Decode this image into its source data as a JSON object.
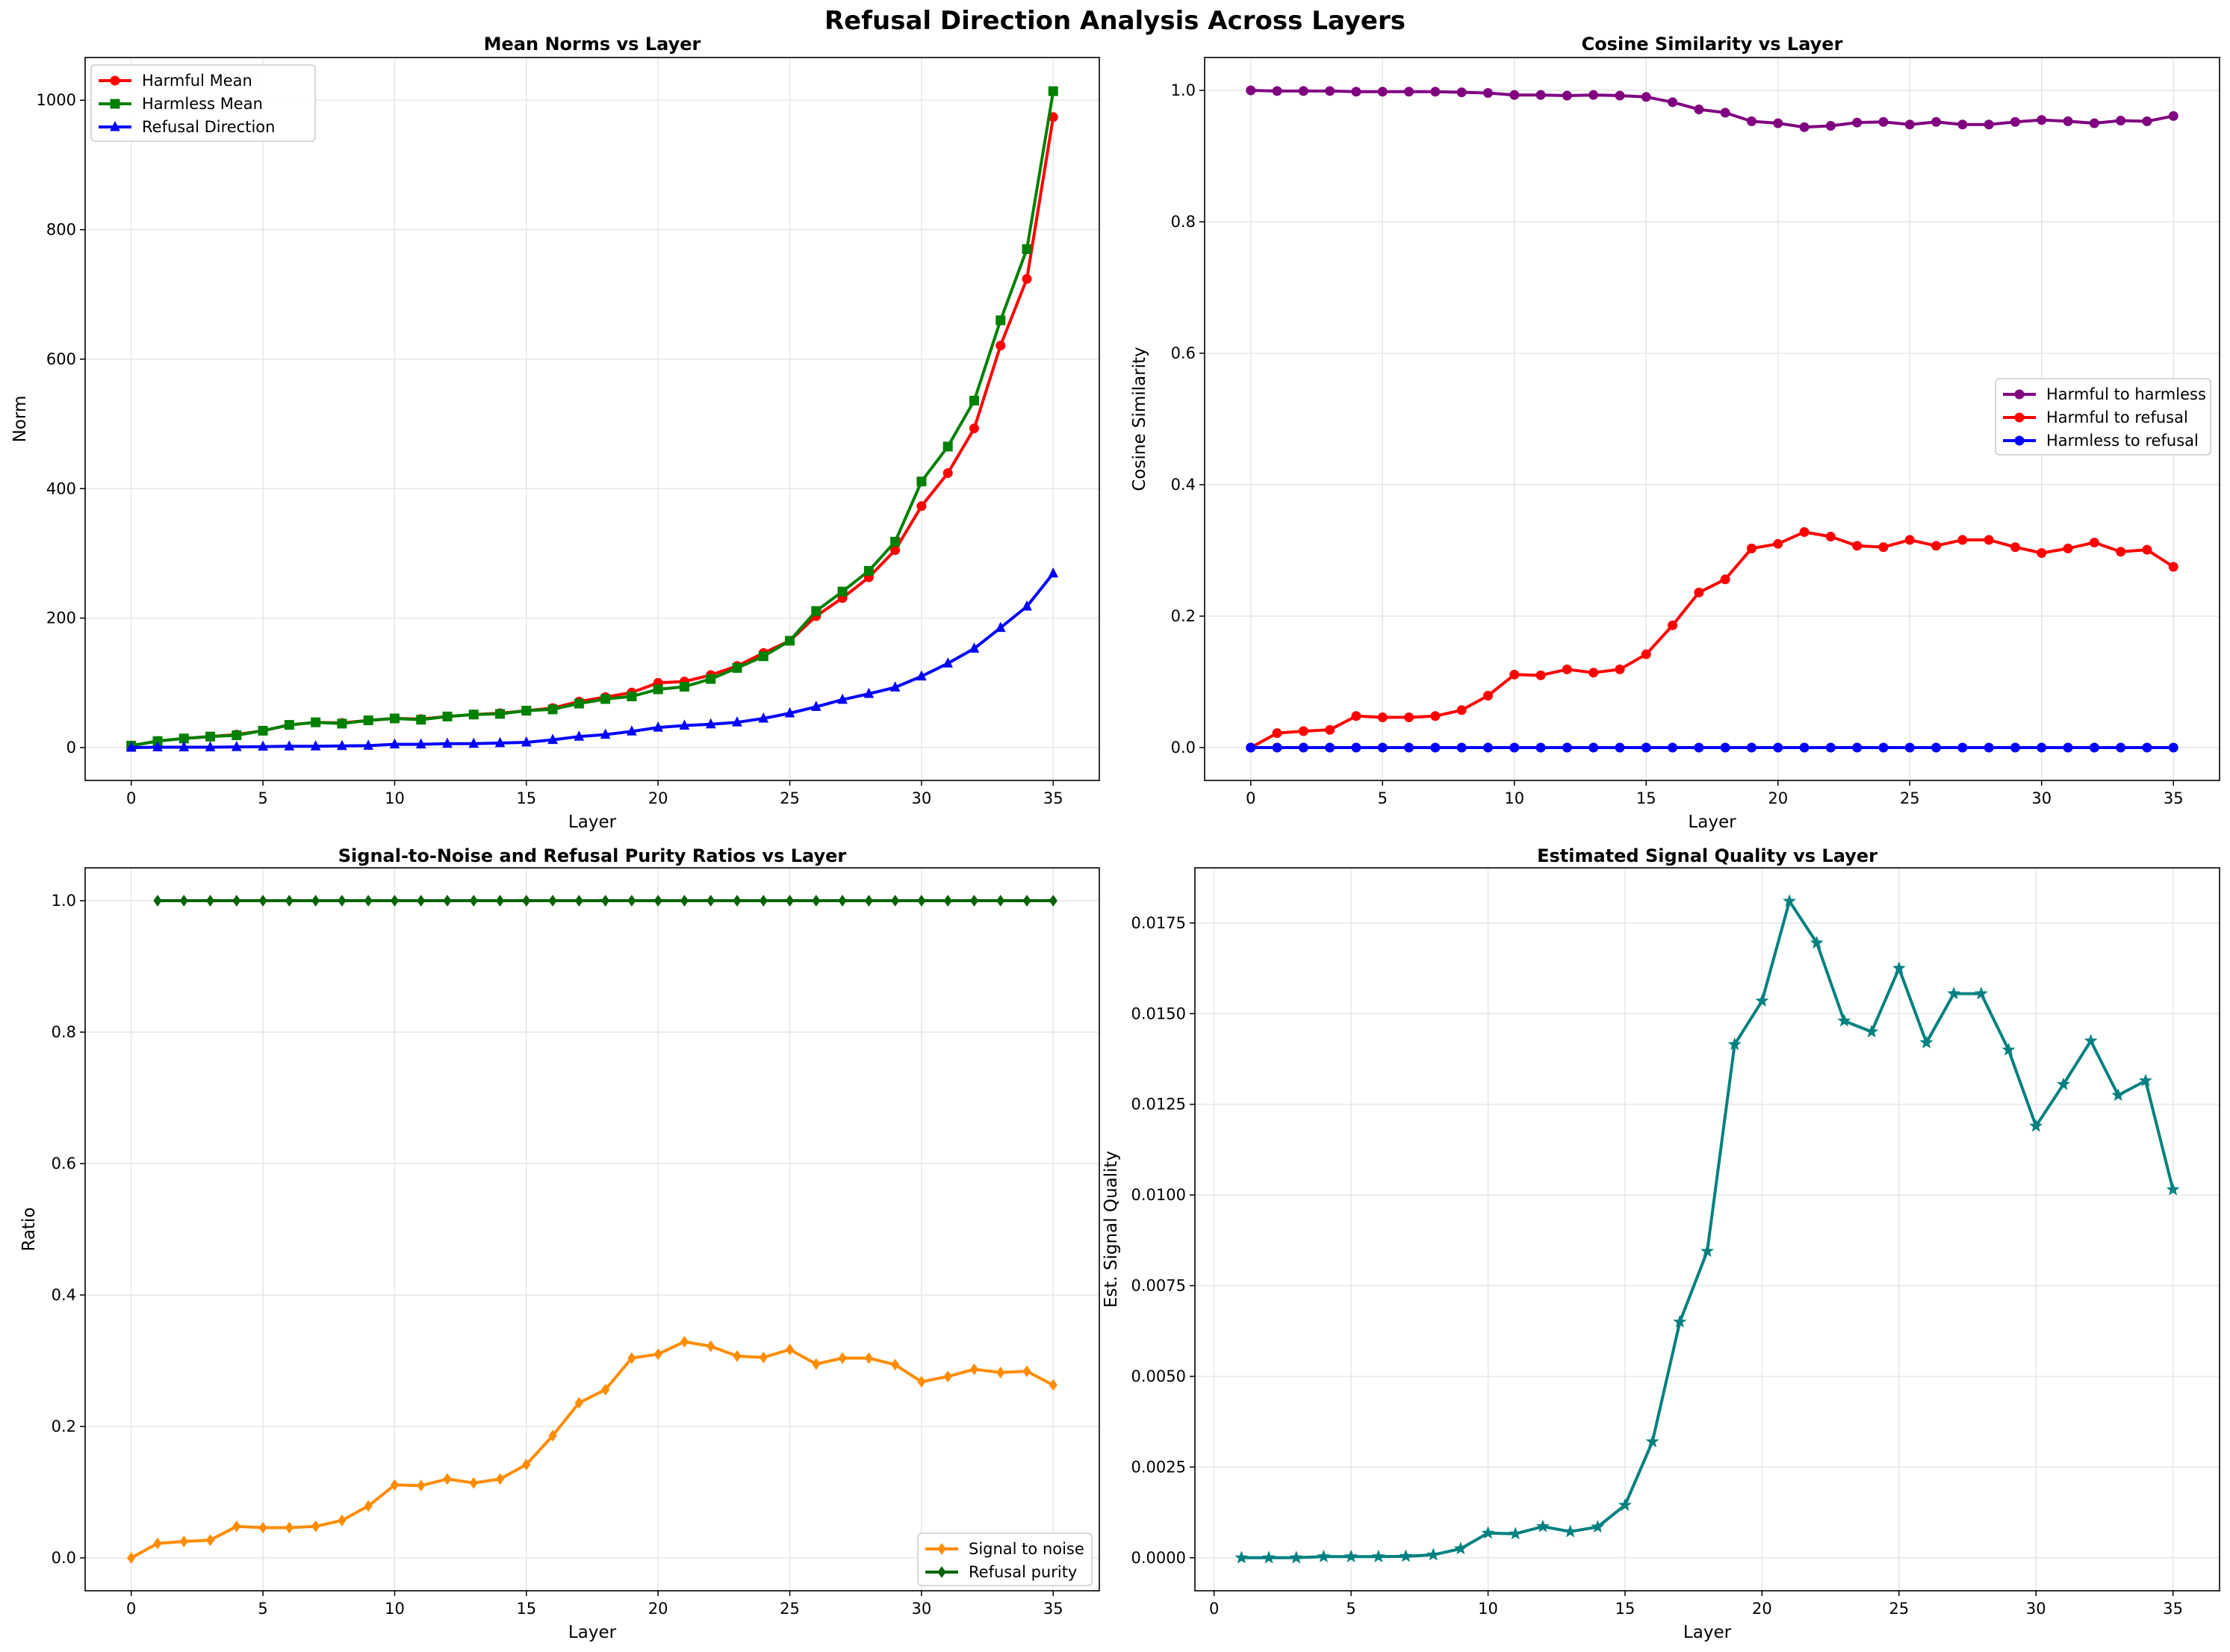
{
  "figure": {
    "title": "Refusal Direction Analysis Across Layers"
  },
  "colors": {
    "red": "#ff0000",
    "green": "#008000",
    "blue": "#0000ff",
    "purple": "#800080",
    "orange": "#ff8c00",
    "darkgreen": "#006400",
    "teal": "#008080",
    "grid": "#e6e6e6"
  },
  "chart_data": [
    {
      "id": "norms",
      "type": "line",
      "title": "Mean Norms vs Layer",
      "xlabel": "Layer",
      "ylabel": "Norm",
      "xlim": [
        -1.75,
        36.75
      ],
      "ylim": [
        -50.8,
        1066
      ],
      "xticks": [
        0,
        5,
        10,
        15,
        20,
        25,
        30,
        35
      ],
      "yticks": [
        0,
        200,
        400,
        600,
        800,
        1000
      ],
      "ytick_labels": [
        "0",
        "200",
        "400",
        "600",
        "800",
        "1000"
      ],
      "legend_position": "top-left",
      "series": [
        {
          "name": "Harmful Mean",
          "color": "#ff0000",
          "marker": "circle",
          "x": [
            0,
            1,
            2,
            3,
            4,
            5,
            6,
            7,
            8,
            9,
            10,
            11,
            12,
            13,
            14,
            15,
            16,
            17,
            18,
            19,
            20,
            21,
            22,
            23,
            24,
            25,
            26,
            27,
            28,
            29,
            30,
            31,
            32,
            33,
            34,
            35
          ],
          "y": [
            3,
            10,
            14,
            17,
            20,
            26,
            35,
            39,
            38,
            42,
            45,
            44,
            48,
            51,
            53,
            57,
            61,
            71,
            78,
            85,
            100,
            102,
            112,
            126,
            146,
            165,
            203,
            231,
            263,
            305,
            373,
            424,
            493,
            621,
            724,
            974
          ]
        },
        {
          "name": "Harmless Mean",
          "color": "#008000",
          "marker": "square",
          "x": [
            0,
            1,
            2,
            3,
            4,
            5,
            6,
            7,
            8,
            9,
            10,
            11,
            12,
            13,
            14,
            15,
            16,
            17,
            18,
            19,
            20,
            21,
            22,
            23,
            24,
            25,
            26,
            27,
            28,
            29,
            30,
            31,
            32,
            33,
            34,
            35
          ],
          "y": [
            3,
            10,
            14,
            17,
            19,
            26,
            35,
            39,
            37,
            42,
            45,
            43,
            48,
            51,
            52,
            57,
            59,
            68,
            75,
            79,
            90,
            94,
            106,
            123,
            141,
            165,
            211,
            241,
            273,
            318,
            411,
            465,
            536,
            660,
            770,
            1014
          ]
        },
        {
          "name": "Refusal Direction",
          "color": "#0000ff",
          "marker": "triangle",
          "x": [
            0,
            1,
            2,
            3,
            4,
            5,
            6,
            7,
            8,
            9,
            10,
            11,
            12,
            13,
            14,
            15,
            16,
            17,
            18,
            19,
            20,
            21,
            22,
            23,
            24,
            25,
            26,
            27,
            28,
            29,
            30,
            31,
            32,
            33,
            34,
            35
          ],
          "y": [
            0,
            0.5,
            0.5,
            0.5,
            1,
            1.5,
            2,
            2,
            2.5,
            3,
            5,
            5,
            6,
            6,
            7,
            8,
            12,
            17,
            20,
            25,
            31,
            34,
            36,
            39,
            45,
            53,
            63,
            74,
            83,
            93,
            110,
            130,
            153,
            185,
            218,
            269
          ]
        }
      ]
    },
    {
      "id": "cosine",
      "type": "line",
      "title": "Cosine Similarity vs Layer",
      "xlabel": "Layer",
      "ylabel": "Cosine Similarity",
      "xlim": [
        -1.75,
        36.75
      ],
      "ylim": [
        -0.05,
        1.05
      ],
      "xticks": [
        0,
        5,
        10,
        15,
        20,
        25,
        30,
        35
      ],
      "yticks": [
        0,
        0.2,
        0.4,
        0.6,
        0.8,
        1.0
      ],
      "ytick_labels": [
        "0.0",
        "0.2",
        "0.4",
        "0.6",
        "0.8",
        "1.0"
      ],
      "legend_position": "center-right",
      "series": [
        {
          "name": "Harmful to harmless",
          "color": "#800080",
          "marker": "circle",
          "x": [
            0,
            1,
            2,
            3,
            4,
            5,
            6,
            7,
            8,
            9,
            10,
            11,
            12,
            13,
            14,
            15,
            16,
            17,
            18,
            19,
            20,
            21,
            22,
            23,
            24,
            25,
            26,
            27,
            28,
            29,
            30,
            31,
            32,
            33,
            34,
            35
          ],
          "y": [
            1.0,
            0.999,
            0.999,
            0.999,
            0.998,
            0.998,
            0.998,
            0.998,
            0.997,
            0.996,
            0.993,
            0.993,
            0.992,
            0.993,
            0.992,
            0.99,
            0.982,
            0.971,
            0.966,
            0.953,
            0.95,
            0.944,
            0.946,
            0.951,
            0.952,
            0.948,
            0.952,
            0.948,
            0.948,
            0.952,
            0.955,
            0.953,
            0.95,
            0.954,
            0.953,
            0.961
          ]
        },
        {
          "name": "Harmful to refusal",
          "color": "#ff0000",
          "marker": "circle",
          "x": [
            0,
            1,
            2,
            3,
            4,
            5,
            6,
            7,
            8,
            9,
            10,
            11,
            12,
            13,
            14,
            15,
            16,
            17,
            18,
            19,
            20,
            21,
            22,
            23,
            24,
            25,
            26,
            27,
            28,
            29,
            30,
            31,
            32,
            33,
            34,
            35
          ],
          "y": [
            0,
            0.022,
            0.025,
            0.027,
            0.048,
            0.046,
            0.046,
            0.048,
            0.057,
            0.079,
            0.111,
            0.11,
            0.119,
            0.114,
            0.119,
            0.142,
            0.186,
            0.236,
            0.256,
            0.303,
            0.31,
            0.328,
            0.321,
            0.307,
            0.305,
            0.316,
            0.307,
            0.316,
            0.316,
            0.305,
            0.296,
            0.303,
            0.312,
            0.298,
            0.301,
            0.275
          ]
        },
        {
          "name": "Harmless to refusal",
          "color": "#0000ff",
          "marker": "circle",
          "x": [
            0,
            1,
            2,
            3,
            4,
            5,
            6,
            7,
            8,
            9,
            10,
            11,
            12,
            13,
            14,
            15,
            16,
            17,
            18,
            19,
            20,
            21,
            22,
            23,
            24,
            25,
            26,
            27,
            28,
            29,
            30,
            31,
            32,
            33,
            34,
            35
          ],
          "y": [
            0,
            0,
            0,
            0,
            0,
            0,
            0,
            0,
            0,
            0,
            0,
            0,
            0,
            0,
            0,
            0,
            0,
            0,
            0,
            0,
            0,
            0,
            0,
            0,
            0,
            0,
            0,
            0,
            0,
            0,
            0,
            0,
            0,
            0,
            0,
            0
          ]
        }
      ]
    },
    {
      "id": "ratios",
      "type": "line",
      "title": "Signal-to-Noise and Refusal Purity Ratios vs Layer",
      "xlabel": "Layer",
      "ylabel": "Ratio",
      "xlim": [
        -1.75,
        36.75
      ],
      "ylim": [
        -0.05,
        1.05
      ],
      "xticks": [
        0,
        5,
        10,
        15,
        20,
        25,
        30,
        35
      ],
      "yticks": [
        0,
        0.2,
        0.4,
        0.6,
        0.8,
        1.0
      ],
      "ytick_labels": [
        "0.0",
        "0.2",
        "0.4",
        "0.6",
        "0.8",
        "1.0"
      ],
      "legend_position": "bottom-right",
      "series": [
        {
          "name": "Signal to noise",
          "color": "#ff8c00",
          "marker": "diamond",
          "x": [
            0,
            1,
            2,
            3,
            4,
            5,
            6,
            7,
            8,
            9,
            10,
            11,
            12,
            13,
            14,
            15,
            16,
            17,
            18,
            19,
            20,
            21,
            22,
            23,
            24,
            25,
            26,
            27,
            28,
            29,
            30,
            31,
            32,
            33,
            34,
            35
          ],
          "y": [
            0,
            0.022,
            0.025,
            0.027,
            0.048,
            0.046,
            0.046,
            0.048,
            0.057,
            0.079,
            0.111,
            0.11,
            0.12,
            0.114,
            0.12,
            0.142,
            0.186,
            0.236,
            0.256,
            0.304,
            0.31,
            0.329,
            0.322,
            0.307,
            0.305,
            0.317,
            0.295,
            0.304,
            0.304,
            0.294,
            0.268,
            0.276,
            0.287,
            0.282,
            0.284,
            0.263
          ]
        },
        {
          "name": "Refusal purity",
          "color": "#006400",
          "marker": "diamond",
          "x": [
            1,
            2,
            3,
            4,
            5,
            6,
            7,
            8,
            9,
            10,
            11,
            12,
            13,
            14,
            15,
            16,
            17,
            18,
            19,
            20,
            21,
            22,
            23,
            24,
            25,
            26,
            27,
            28,
            29,
            30,
            31,
            32,
            33,
            34,
            35
          ],
          "y": [
            1,
            1,
            1,
            1,
            1,
            1,
            1,
            1,
            1,
            1,
            1,
            1,
            1,
            1,
            1,
            1,
            1,
            1,
            1,
            1,
            1,
            1,
            1,
            1,
            1,
            1,
            1,
            1,
            1,
            1,
            1,
            1,
            1,
            1,
            1
          ]
        }
      ]
    },
    {
      "id": "quality",
      "type": "line",
      "title": "Estimated Signal Quality vs Layer",
      "xlabel": "Layer",
      "ylabel": "Est. Signal Quality",
      "xlim": [
        -0.7,
        36.7
      ],
      "ylim": [
        -0.00091,
        0.01902
      ],
      "xticks": [
        0,
        5,
        10,
        15,
        20,
        25,
        30,
        35
      ],
      "yticks": [
        0,
        0.0025,
        0.005,
        0.0075,
        0.01,
        0.0125,
        0.015,
        0.0175
      ],
      "ytick_labels": [
        "0.0000",
        "0.0025",
        "0.0050",
        "0.0075",
        "0.0100",
        "0.0125",
        "0.0150",
        "0.0175"
      ],
      "legend_position": "none",
      "series": [
        {
          "name": "Est. Signal Quality",
          "color": "#008080",
          "marker": "star",
          "x": [
            1,
            2,
            3,
            4,
            5,
            6,
            7,
            8,
            9,
            10,
            11,
            12,
            13,
            14,
            15,
            16,
            17,
            18,
            19,
            20,
            21,
            22,
            23,
            24,
            25,
            26,
            27,
            28,
            29,
            30,
            31,
            32,
            33,
            34,
            35
          ],
          "y": [
            0,
            0,
            0,
            3e-05,
            3e-05,
            3e-05,
            4e-05,
            8e-05,
            0.00025,
            0.00068,
            0.00066,
            0.00086,
            0.00072,
            0.00085,
            0.00145,
            0.0032,
            0.0065,
            0.00845,
            0.01415,
            0.01535,
            0.0181,
            0.01695,
            0.0148,
            0.0145,
            0.01625,
            0.0142,
            0.01555,
            0.01555,
            0.014,
            0.0119,
            0.01305,
            0.01425,
            0.01275,
            0.01315,
            0.01015
          ]
        }
      ]
    }
  ]
}
